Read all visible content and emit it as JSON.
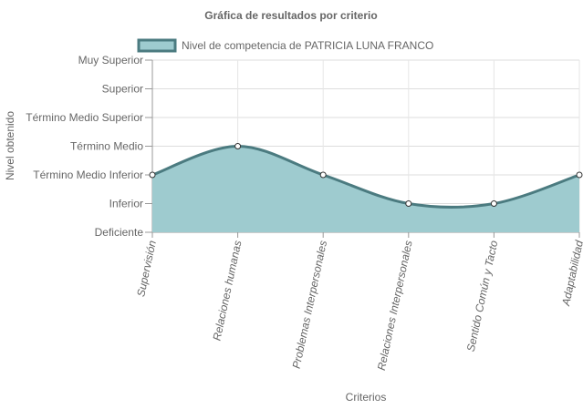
{
  "chart_data": {
    "type": "area",
    "title": "Gráfica de resultados por criterio",
    "xlabel": "Criterios",
    "ylabel": "Nivel obtenido",
    "y_levels": [
      "Deficiente",
      "Inferior",
      "Término Medio Inferior",
      "Término Medio",
      "Término Medio Superior",
      "Superior",
      "Muy Superior"
    ],
    "categories": [
      "Supervisión",
      "Relaciones humanas",
      "Problemas Interpersonales",
      "Relaciones Interpersonales",
      "Sentido Común y Tacto",
      "Adaptabilidad"
    ],
    "series": [
      {
        "name": "Nivel de competencia de PATRICIA LUNA FRANCO",
        "values": [
          2,
          3,
          2,
          1,
          1,
          2
        ],
        "fill_color": "#9ecbcf",
        "line_color": "#4b7b80"
      }
    ],
    "ylim": [
      0,
      6
    ],
    "grid": true,
    "legend_position": "top",
    "curve": "smooth"
  }
}
